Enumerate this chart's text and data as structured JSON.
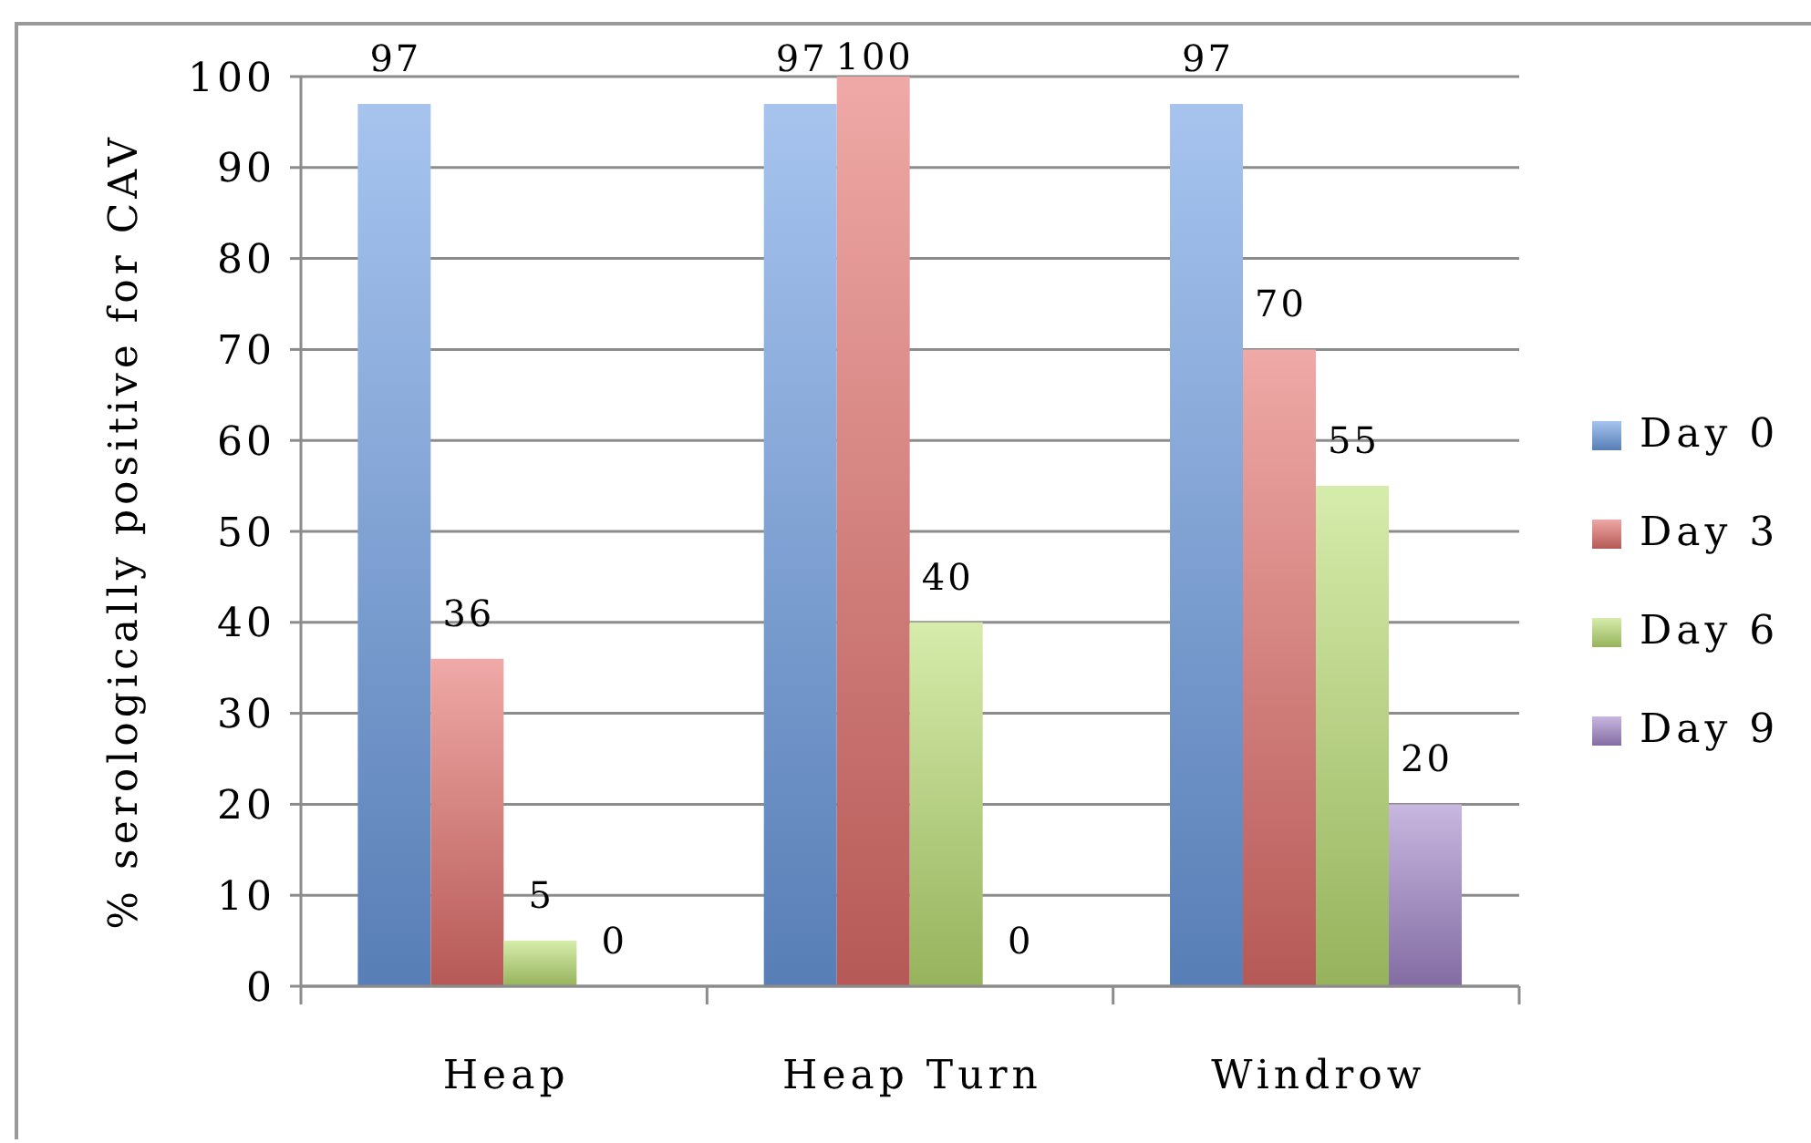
{
  "chart_data": {
    "type": "bar",
    "ylabel": "% serologically positive for CAV",
    "categories": [
      "Heap",
      "Heap Turn",
      "Windrow"
    ],
    "series": [
      {
        "name": "Day 0",
        "color": "#6d9de4",
        "values": [
          97,
          97,
          97
        ]
      },
      {
        "name": "Day 3",
        "color": "#e46f6b",
        "values": [
          36,
          100,
          70
        ]
      },
      {
        "name": "Day 6",
        "color": "#bbe073",
        "values": [
          5,
          40,
          55
        ]
      },
      {
        "name": "Day 9",
        "color": "#a487cc",
        "values": [
          0,
          0,
          20
        ]
      }
    ],
    "ylim": [
      0,
      100
    ],
    "yticks": [
      0,
      10,
      20,
      30,
      40,
      50,
      60,
      70,
      80,
      90,
      100
    ],
    "grid": "y",
    "legend": "right",
    "data_labels": true
  }
}
